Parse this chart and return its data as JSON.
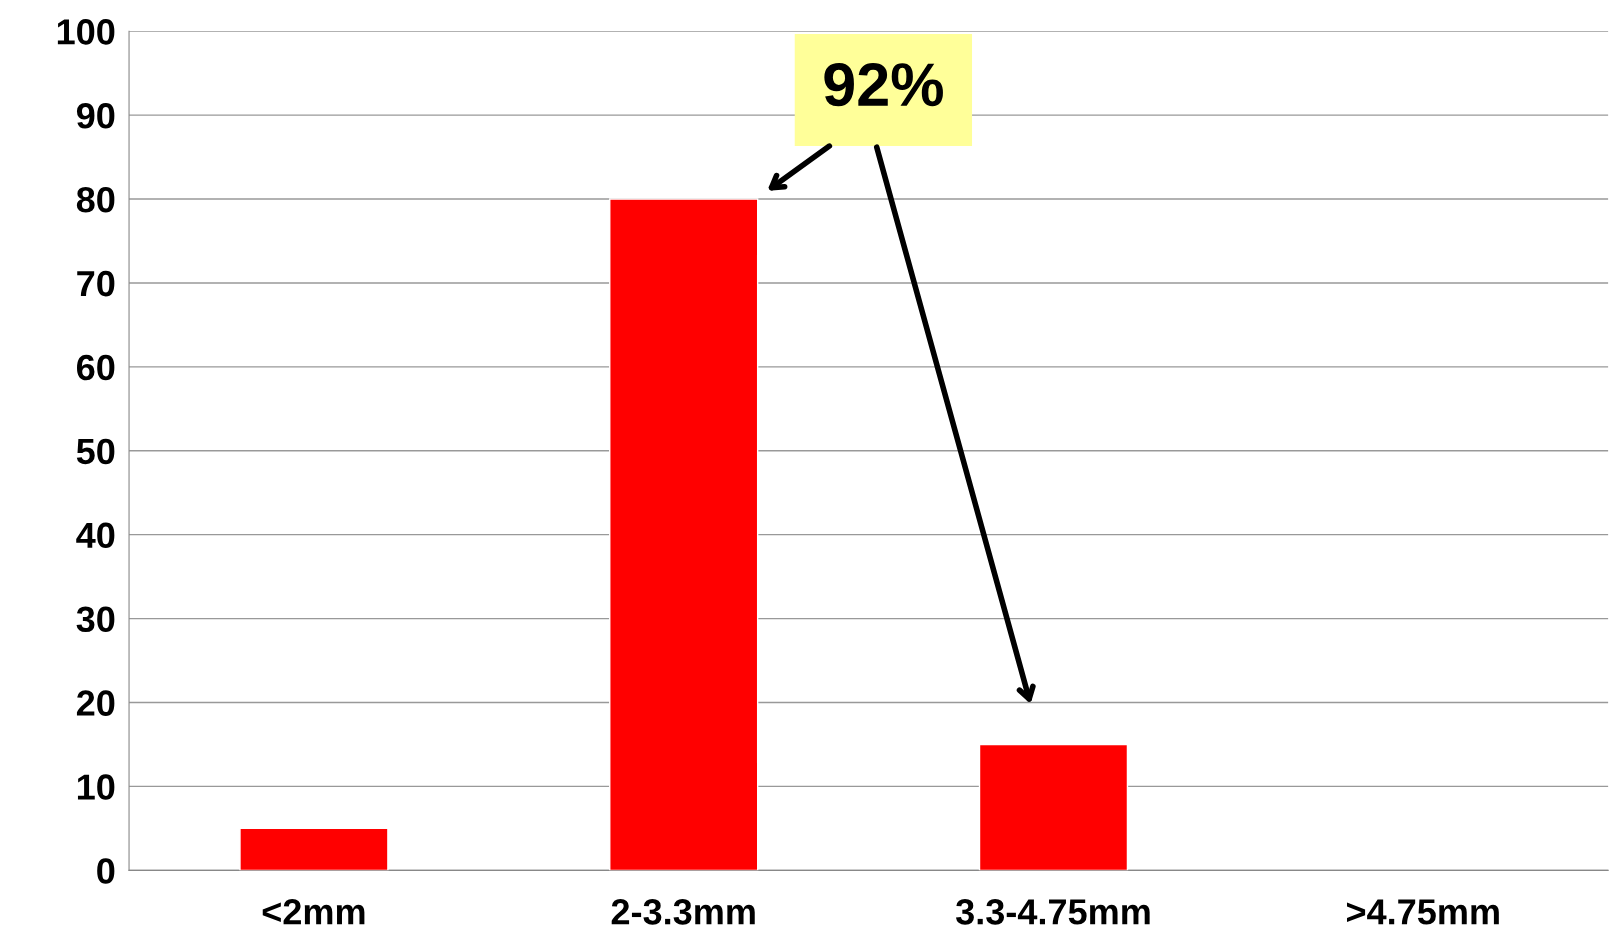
{
  "chart_data": {
    "type": "bar",
    "categories": [
      "<2mm",
      "2-3.3mm",
      "3.3-4.75mm",
      ">4.75mm"
    ],
    "values": [
      5,
      80,
      15,
      null
    ],
    "color": "#ff0000",
    "ylim": [
      0,
      100
    ],
    "yticks": [
      0,
      10,
      20,
      30,
      40,
      50,
      60,
      70,
      80,
      90,
      100
    ],
    "grid": "y",
    "annotations": [
      "92%"
    ]
  }
}
